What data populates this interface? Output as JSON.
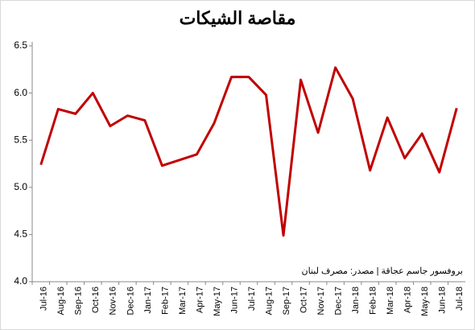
{
  "chart_data": {
    "type": "line",
    "title": "مقاصة الشيكات",
    "annotation": "بروفسور جاسم عجاقة | مصدر: مصرف لبنان",
    "categories": [
      "Jul-16",
      "Aug-16",
      "Sep-16",
      "Oct-16",
      "Nov-16",
      "Dec-16",
      "Jan-17",
      "Feb-17",
      "Mar-17",
      "Apr-17",
      "May-17",
      "Jun-17",
      "Jul-17",
      "Aug-17",
      "Sep-17",
      "Oct-17",
      "Nov-17",
      "Dec-17",
      "Jan-18",
      "Feb-18",
      "Mar-18",
      "Apr-18",
      "May-18",
      "Jun-18",
      "Jul-18"
    ],
    "values": [
      5.24,
      5.83,
      5.78,
      6.0,
      5.65,
      5.76,
      5.71,
      5.23,
      5.29,
      5.35,
      5.68,
      6.17,
      6.17,
      5.98,
      4.49,
      6.14,
      5.58,
      6.27,
      5.94,
      5.18,
      5.74,
      5.31,
      5.57,
      5.16,
      5.84
    ],
    "color": "#c00000",
    "ylim": [
      4.0,
      6.5
    ],
    "yticks": [
      {
        "value": 4.0,
        "label": "4.0"
      },
      4.5,
      {
        "value": 5.0,
        "label": "5.0"
      },
      5.5,
      {
        "value": 6.0,
        "label": "6.0"
      },
      6.5
    ]
  }
}
